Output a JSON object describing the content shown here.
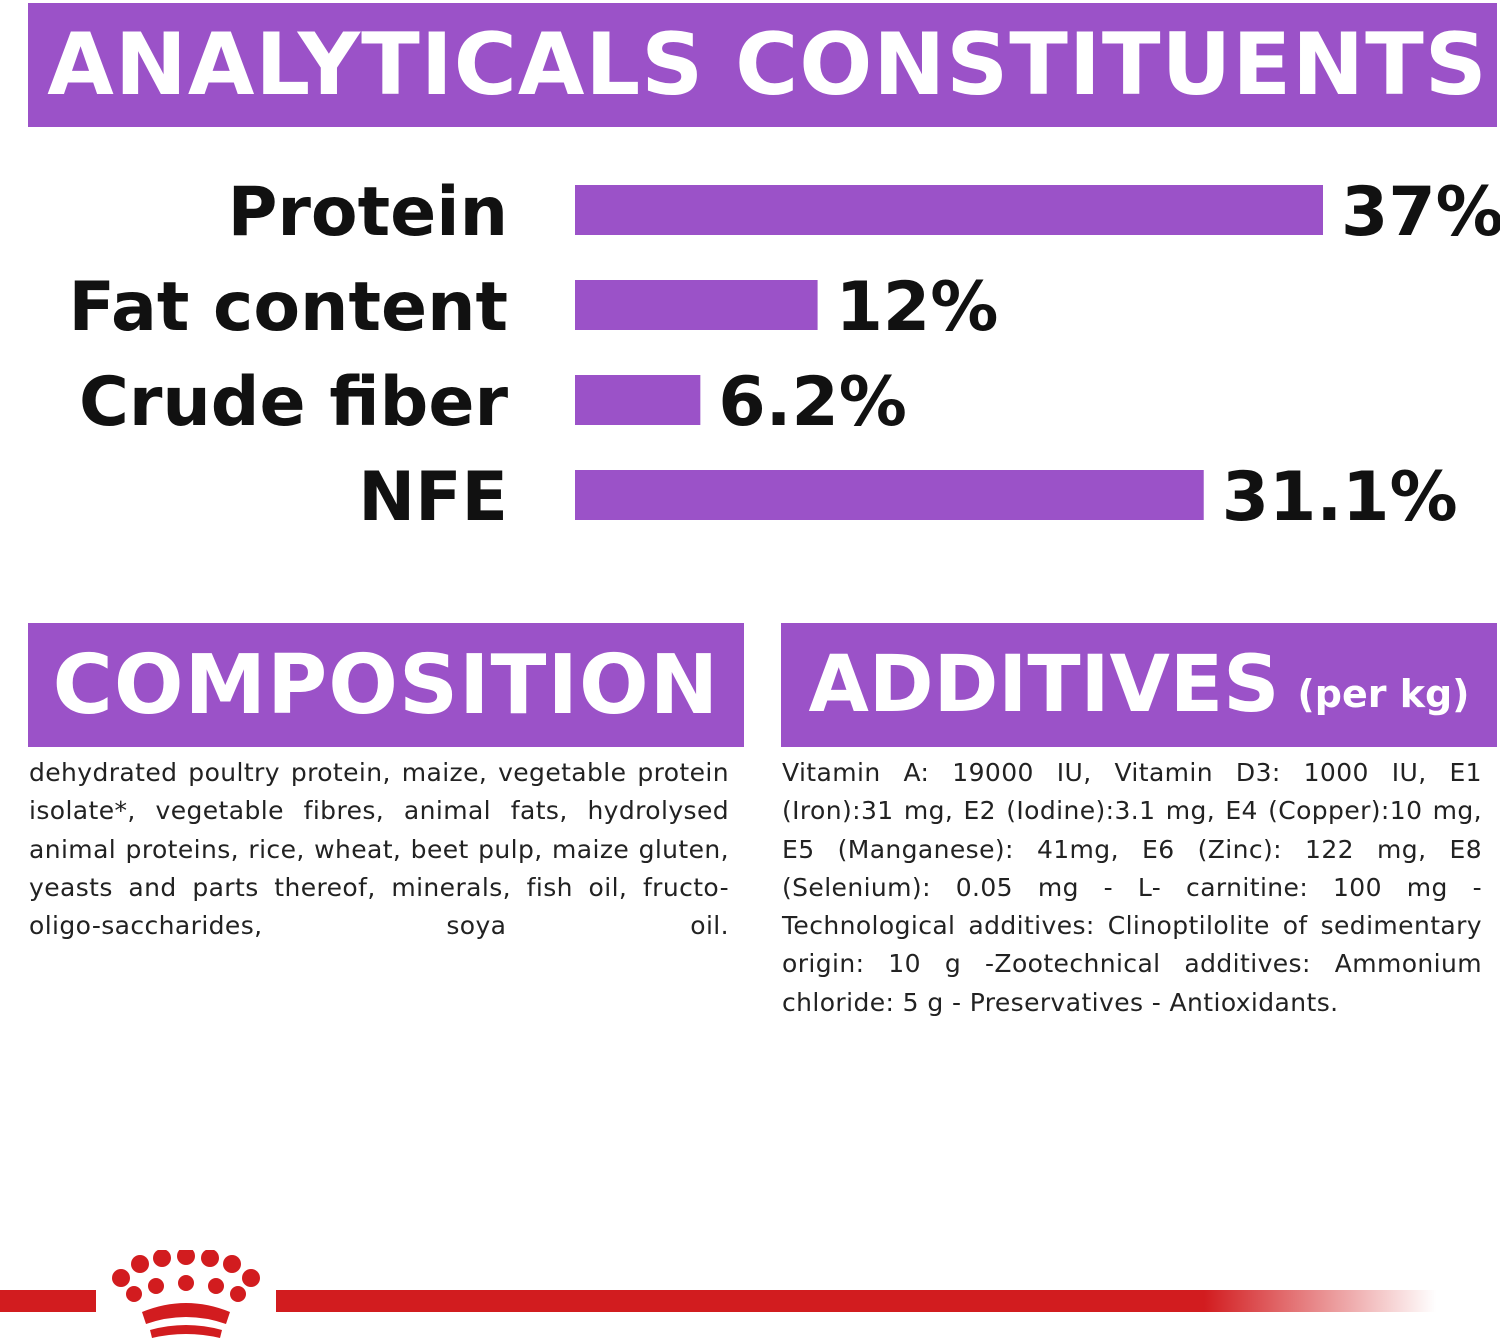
{
  "headings": {
    "analytical": "ANALYTICALS CONSTITUENTS",
    "composition": "COMPOSITION",
    "additives": "ADDITIVES",
    "additives_unit": "(per kg)"
  },
  "chart_data": {
    "type": "bar",
    "orientation": "horizontal",
    "categories": [
      "Protein",
      "Fat content",
      "Crude fiber",
      "NFE"
    ],
    "values": [
      37,
      12,
      6.2,
      31.1
    ],
    "value_labels": [
      "37%",
      "12%",
      "6.2%",
      "31.1%"
    ],
    "unit": "%",
    "bar_color": "#9b52c8",
    "xlim": [
      0,
      37
    ],
    "grid": false
  },
  "composition_text": "dehydrated poultry protein, maize, vegetable protein isolate*, vegetable fibres, animal fats, hydrolysed animal proteins, rice, wheat, beet pulp, maize gluten, yeasts and parts thereof, minerals, fish oil, fructo-oligo-saccharides, soya oil.",
  "additives_text": "Vitamin A: 19000 IU, Vitamin D3: 1000 IU, E1 (Iron):31 mg, E2 (Iodine):3.1 mg, E4 (Copper):10 mg, E5 (Manganese): 41mg, E6 (Zinc): 122 mg, E8 (Selenium): 0.05 mg - L- carnitine: 100 mg - Technological additives: Clinoptilolite of sedimentary origin: 10 g -Zootechnical additives: Ammonium chloride: 5 g - Preservatives - Antioxidants.",
  "colors": {
    "accent_purple": "#9b52c8",
    "brand_red": "#d21c1f"
  },
  "icons": {
    "brand_logo": "crown-icon"
  }
}
